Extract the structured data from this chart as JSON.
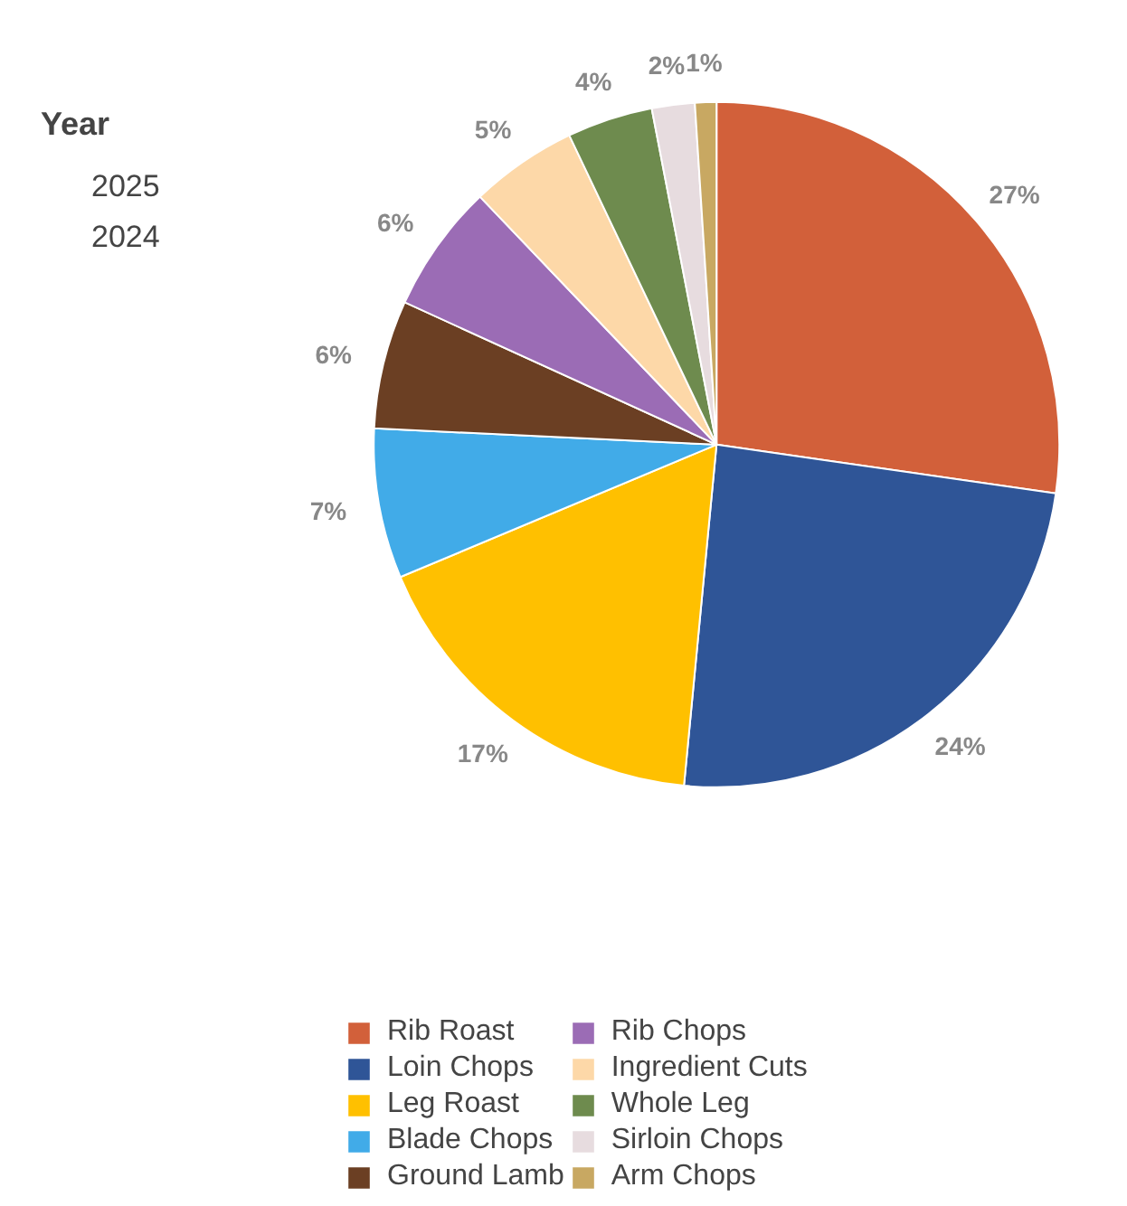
{
  "chart_data": {
    "type": "pie",
    "legend_title": "Year",
    "annotations": [
      "2025",
      "2024"
    ],
    "categories": [
      "Rib Roast",
      "Loin Chops",
      "Leg Roast",
      "Blade Chops",
      "Ground Lamb",
      "Rib Chops",
      "Ingredient Cuts",
      "Whole Leg",
      "Sirloin Chops",
      "Arm Chops"
    ],
    "values": [
      27,
      24,
      17,
      7,
      6,
      6,
      5,
      4,
      2,
      1
    ],
    "value_labels": [
      "27%",
      "24%",
      "17%",
      "7%",
      "6%",
      "6%",
      "5%",
      "4%",
      "2%",
      "1%"
    ],
    "colors": [
      "#d2603a",
      "#2f5597",
      "#ffc000",
      "#41abe8",
      "#6b3f23",
      "#9b6cb5",
      "#fdd8a8",
      "#6e8b4e",
      "#e7dcdf",
      "#c8a862"
    ],
    "legend": "bottom"
  }
}
